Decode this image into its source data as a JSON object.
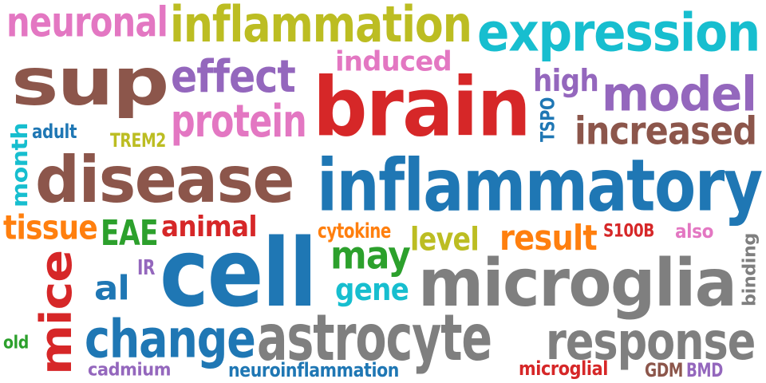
{
  "palette": {
    "pink": "#e377c2",
    "olive": "#bcbd22",
    "cyan": "#17becf",
    "brown": "#8c564b",
    "purple": "#9467bd",
    "red": "#d62728",
    "blue": "#1f77b4",
    "gray": "#7f7f7f",
    "green": "#2ca02c",
    "orange": "#ff7f0e"
  },
  "words": [
    {
      "text": "neuronal",
      "color": "#e377c2"
    },
    {
      "text": "inflammation",
      "color": "#bcbd22"
    },
    {
      "text": "expression",
      "color": "#17becf"
    },
    {
      "text": "sup",
      "color": "#8c564b"
    },
    {
      "text": "effect",
      "color": "#9467bd"
    },
    {
      "text": "induced",
      "color": "#e377c2"
    },
    {
      "text": "brain",
      "color": "#d62728"
    },
    {
      "text": "high",
      "color": "#9467bd"
    },
    {
      "text": "model",
      "color": "#9467bd"
    },
    {
      "text": "protein",
      "color": "#e377c2"
    },
    {
      "text": "TSPO",
      "color": "#1f77b4"
    },
    {
      "text": "increased",
      "color": "#8c564b"
    },
    {
      "text": "adult",
      "color": "#1f77b4"
    },
    {
      "text": "TREM2",
      "color": "#bcbd22"
    },
    {
      "text": "month",
      "color": "#17becf"
    },
    {
      "text": "disease",
      "color": "#8c564b"
    },
    {
      "text": "inflammatory",
      "color": "#1f77b4"
    },
    {
      "text": "tissue",
      "color": "#ff7f0e"
    },
    {
      "text": "EAE",
      "color": "#2ca02c"
    },
    {
      "text": "animal",
      "color": "#d62728"
    },
    {
      "text": "cytokine",
      "color": "#ff7f0e"
    },
    {
      "text": "level",
      "color": "#bcbd22"
    },
    {
      "text": "result",
      "color": "#ff7f0e"
    },
    {
      "text": "S100B",
      "color": "#d62728"
    },
    {
      "text": "also",
      "color": "#e377c2"
    },
    {
      "text": "binding",
      "color": "#7f7f7f"
    },
    {
      "text": "cell",
      "color": "#1f77b4"
    },
    {
      "text": "may",
      "color": "#2ca02c"
    },
    {
      "text": "microglia",
      "color": "#7f7f7f"
    },
    {
      "text": "IR",
      "color": "#9467bd"
    },
    {
      "text": "al",
      "color": "#1f77b4"
    },
    {
      "text": "gene",
      "color": "#17becf"
    },
    {
      "text": "mice",
      "color": "#d62728"
    },
    {
      "text": "old",
      "color": "#2ca02c"
    },
    {
      "text": "change",
      "color": "#1f77b4"
    },
    {
      "text": "astrocyte",
      "color": "#7f7f7f"
    },
    {
      "text": "response",
      "color": "#7f7f7f"
    },
    {
      "text": "cadmium",
      "color": "#9467bd"
    },
    {
      "text": "neuroinflammation",
      "color": "#1f77b4"
    },
    {
      "text": "microglial",
      "color": "#d62728"
    },
    {
      "text": "GDM",
      "color": "#8c564b"
    },
    {
      "text": "BMD",
      "color": "#9467bd"
    }
  ]
}
